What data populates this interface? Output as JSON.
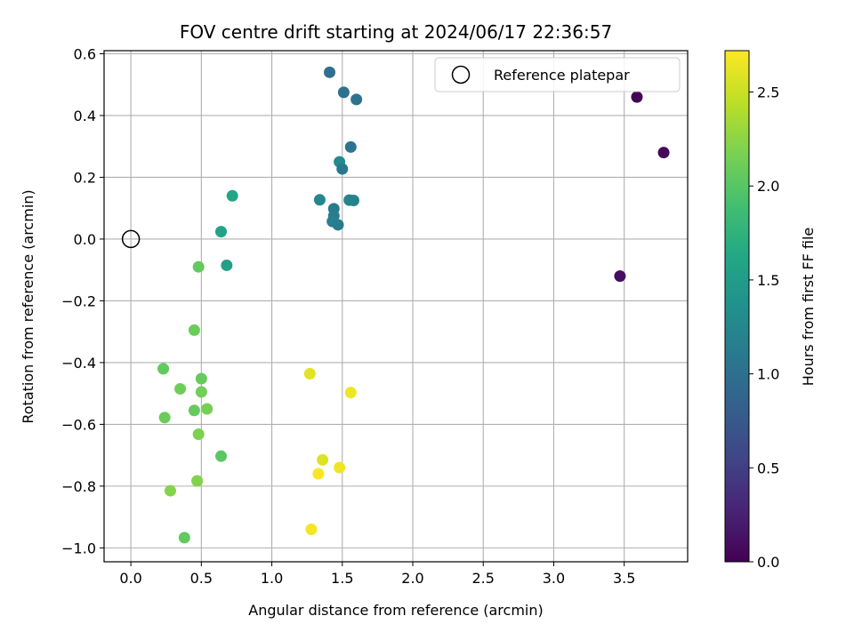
{
  "chart_data": {
    "type": "scatter",
    "title": "FOV centre drift starting at 2024/06/17 22:36:57",
    "xlabel": "Angular distance from reference (arcmin)",
    "ylabel": "Rotation from reference (arcmin)",
    "xlim": [
      -0.19,
      3.95
    ],
    "ylim": [
      -1.045,
      0.61
    ],
    "xticks": [
      0.0,
      0.5,
      1.0,
      1.5,
      2.0,
      2.5,
      3.0,
      3.5
    ],
    "xtick_labels": [
      "0.0",
      "0.5",
      "1.0",
      "1.5",
      "2.0",
      "2.5",
      "3.0",
      "3.5"
    ],
    "yticks": [
      -1.0,
      -0.8,
      -0.6,
      -0.4,
      -0.2,
      0.0,
      0.2,
      0.4,
      0.6
    ],
    "ytick_labels": [
      "−1.0",
      "−0.8",
      "−0.6",
      "−0.4",
      "−0.2",
      "0.0",
      "0.2",
      "0.4",
      "0.6"
    ],
    "grid": true,
    "legend": {
      "position": "top-right",
      "entries": [
        "Reference platepar"
      ]
    },
    "reference_point": {
      "x": 0.0,
      "y": 0.0,
      "label": "Reference platepar"
    },
    "colorbar": {
      "label": "Hours from first FF file",
      "colormap": "viridis",
      "range": [
        0.0,
        2.72
      ],
      "ticks": [
        0.0,
        0.5,
        1.0,
        1.5,
        2.0,
        2.5
      ],
      "tick_labels": [
        "0.0",
        "0.5",
        "1.0",
        "1.5",
        "2.0",
        "2.5"
      ]
    },
    "points": [
      {
        "x": 3.59,
        "y": 0.46,
        "hours": 0.02
      },
      {
        "x": 3.78,
        "y": 0.28,
        "hours": 0.06
      },
      {
        "x": 3.47,
        "y": -0.12,
        "hours": 0.1
      },
      {
        "x": 1.41,
        "y": 0.54,
        "hours": 1.0
      },
      {
        "x": 1.51,
        "y": 0.475,
        "hours": 1.02
      },
      {
        "x": 1.6,
        "y": 0.452,
        "hours": 1.04
      },
      {
        "x": 1.56,
        "y": 0.298,
        "hours": 1.06
      },
      {
        "x": 1.48,
        "y": 0.25,
        "hours": 1.3
      },
      {
        "x": 1.5,
        "y": 0.227,
        "hours": 1.08
      },
      {
        "x": 1.34,
        "y": 0.127,
        "hours": 1.24
      },
      {
        "x": 1.55,
        "y": 0.126,
        "hours": 1.22
      },
      {
        "x": 1.58,
        "y": 0.125,
        "hours": 1.2
      },
      {
        "x": 1.44,
        "y": 0.098,
        "hours": 1.1
      },
      {
        "x": 1.44,
        "y": 0.075,
        "hours": 1.14
      },
      {
        "x": 1.43,
        "y": 0.057,
        "hours": 1.16
      },
      {
        "x": 1.47,
        "y": 0.046,
        "hours": 1.12
      },
      {
        "x": 0.72,
        "y": 0.14,
        "hours": 1.6
      },
      {
        "x": 0.64,
        "y": 0.024,
        "hours": 1.58
      },
      {
        "x": 0.68,
        "y": -0.085,
        "hours": 1.52
      },
      {
        "x": 0.48,
        "y": -0.09,
        "hours": 2.06
      },
      {
        "x": 0.45,
        "y": -0.295,
        "hours": 2.1
      },
      {
        "x": 0.23,
        "y": -0.42,
        "hours": 2.05
      },
      {
        "x": 0.35,
        "y": -0.485,
        "hours": 2.12
      },
      {
        "x": 0.5,
        "y": -0.452,
        "hours": 2.08
      },
      {
        "x": 0.5,
        "y": -0.495,
        "hours": 2.14
      },
      {
        "x": 0.24,
        "y": -0.578,
        "hours": 2.1
      },
      {
        "x": 0.45,
        "y": -0.555,
        "hours": 2.07
      },
      {
        "x": 0.54,
        "y": -0.55,
        "hours": 2.15
      },
      {
        "x": 0.48,
        "y": -0.632,
        "hours": 2.18
      },
      {
        "x": 0.64,
        "y": -0.703,
        "hours": 2.02
      },
      {
        "x": 0.47,
        "y": -0.783,
        "hours": 2.2
      },
      {
        "x": 0.28,
        "y": -0.815,
        "hours": 2.22
      },
      {
        "x": 0.38,
        "y": -0.967,
        "hours": 2.05
      },
      {
        "x": 1.27,
        "y": -0.436,
        "hours": 2.6
      },
      {
        "x": 1.56,
        "y": -0.497,
        "hours": 2.65
      },
      {
        "x": 1.36,
        "y": -0.715,
        "hours": 2.58
      },
      {
        "x": 1.48,
        "y": -0.74,
        "hours": 2.66
      },
      {
        "x": 1.33,
        "y": -0.76,
        "hours": 2.7
      },
      {
        "x": 1.28,
        "y": -0.94,
        "hours": 2.68
      }
    ]
  }
}
